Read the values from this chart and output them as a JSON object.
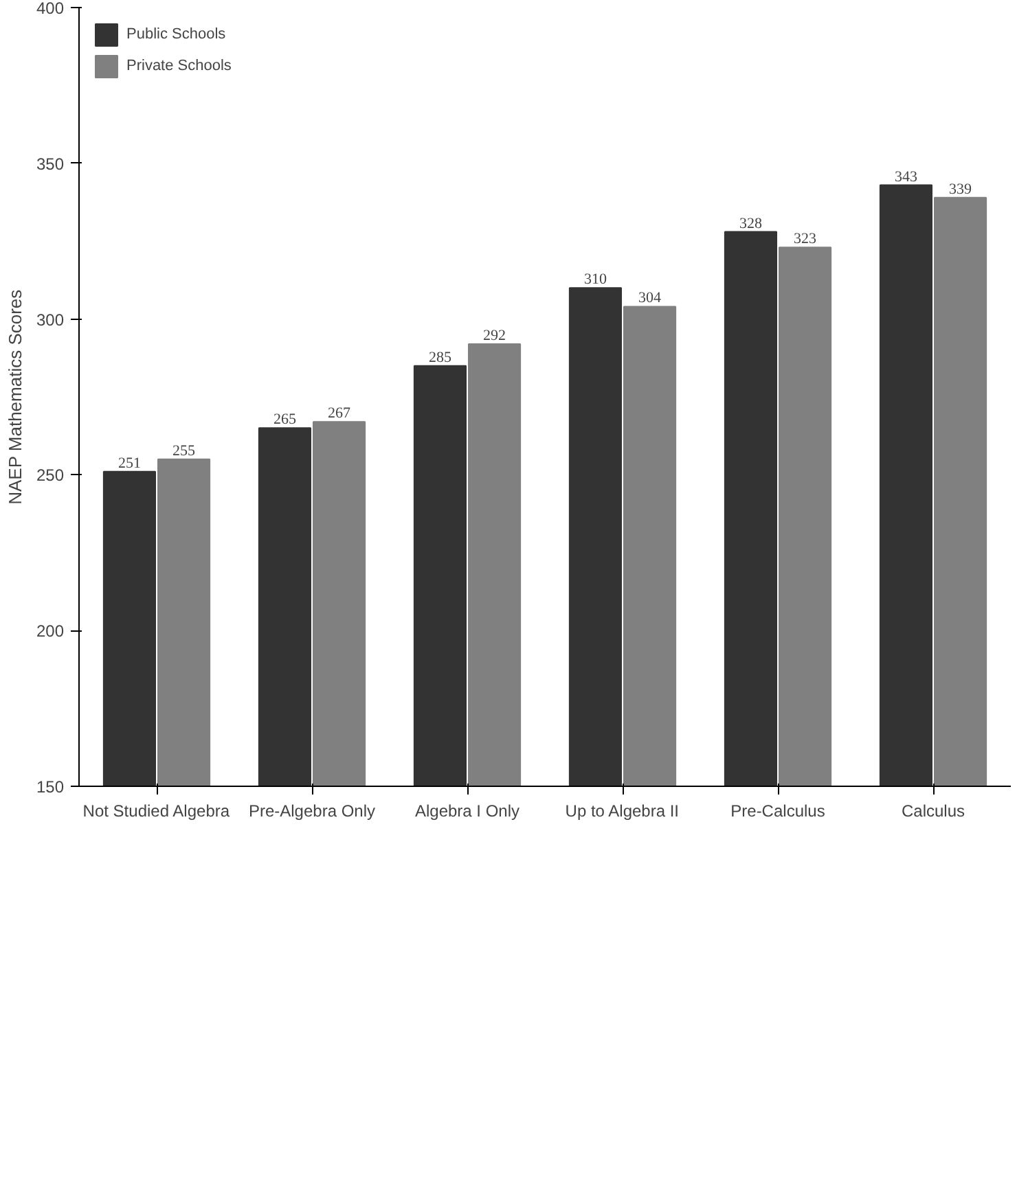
{
  "chart_data": {
    "type": "bar",
    "ylabel": "NAEP Mathematics Scores",
    "categories": [
      "Not Studied Algebra",
      "Pre-Algebra Only",
      "Algebra I Only",
      "Up to Algebra II",
      "Pre-Calculus",
      "Calculus"
    ],
    "series": [
      {
        "name": "Public Schools",
        "color": "#333333",
        "values": [
          251,
          265,
          285,
          310,
          328,
          343
        ]
      },
      {
        "name": "Private Schools",
        "color": "#808080",
        "values": [
          255,
          267,
          292,
          304,
          323,
          339
        ]
      }
    ],
    "ylim": [
      150,
      400
    ],
    "yticks": [
      150,
      200,
      250,
      300,
      350,
      400
    ],
    "data_labels": true,
    "legend": "top left",
    "grid": false
  }
}
